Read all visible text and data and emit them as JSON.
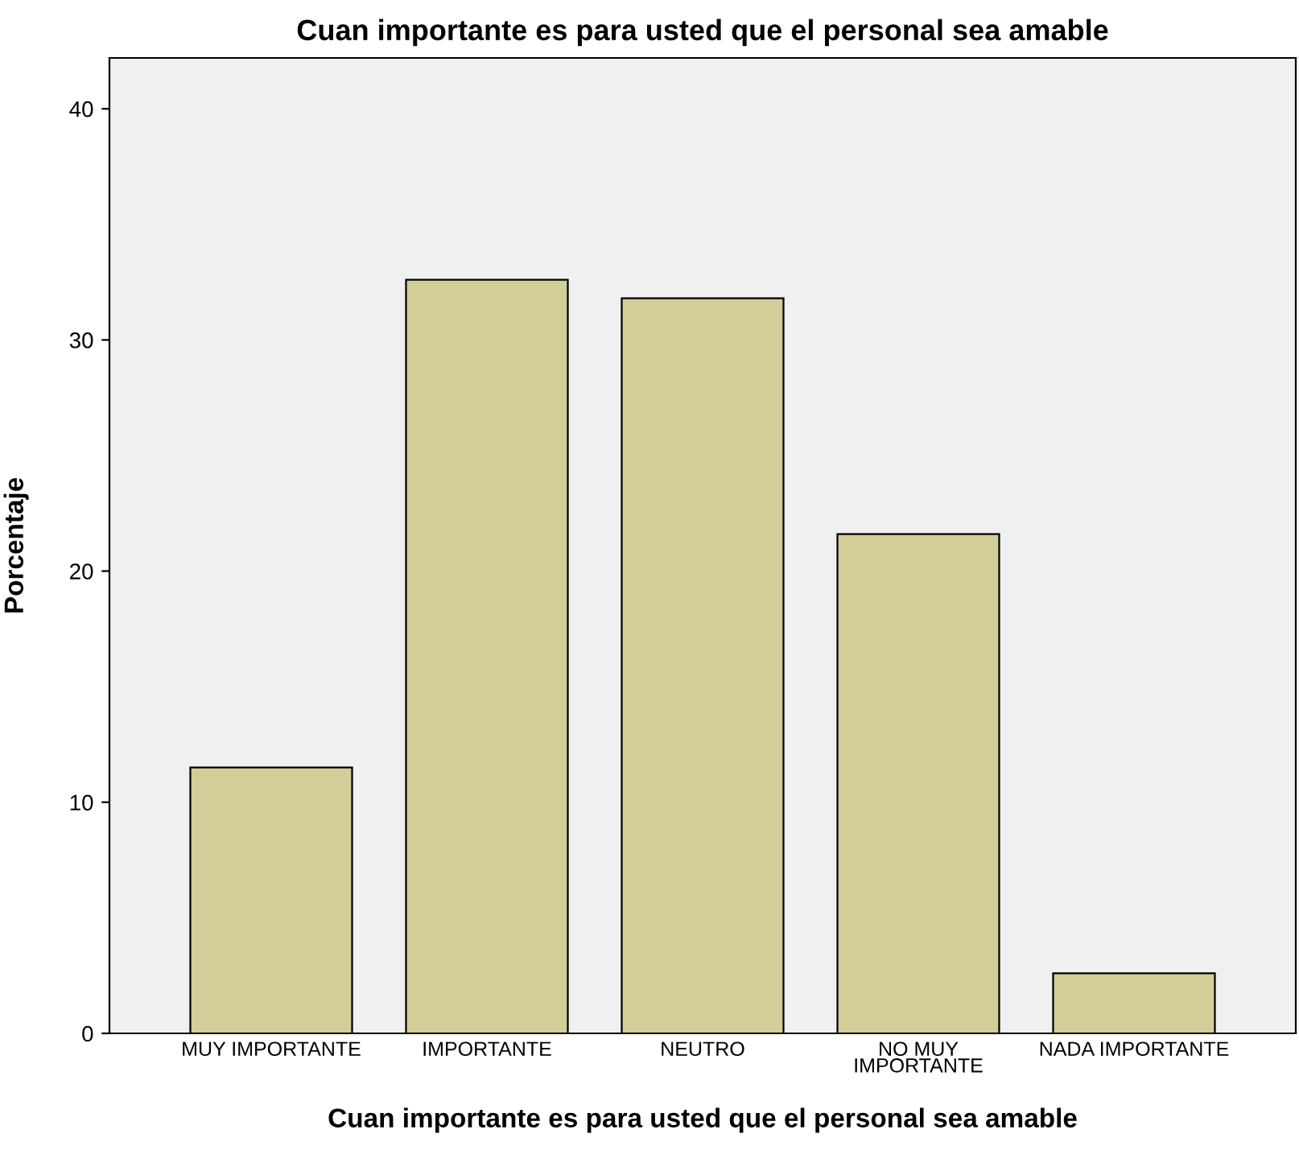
{
  "chart_data": {
    "type": "bar",
    "title": "Cuan importante es para usted que el personal sea amable",
    "xlabel": "Cuan importante es para usted que el personal sea amable",
    "ylabel": "Porcentaje",
    "categories": [
      "MUY IMPORTANTE",
      "IMPORTANTE",
      "NEUTRO",
      "NO MUY\nIMPORTANTE",
      "NADA IMPORTANTE"
    ],
    "values": [
      11.5,
      32.6,
      31.8,
      21.6,
      2.6
    ],
    "color": "#d3ce97",
    "ylim": [
      0,
      42.2
    ],
    "yticks": [
      0,
      10,
      20,
      30,
      40
    ],
    "grid": false
  }
}
